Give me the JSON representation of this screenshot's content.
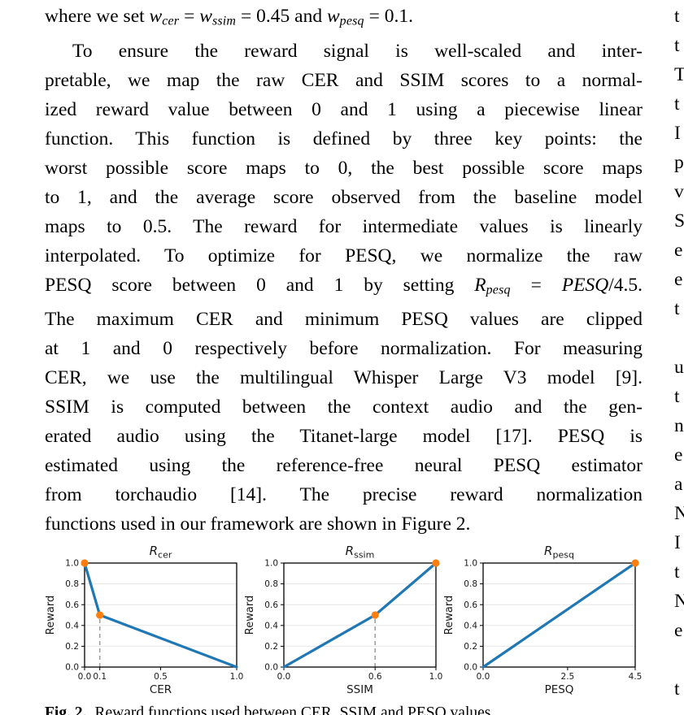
{
  "page": {
    "background": "#ffffff"
  },
  "text": {
    "intro_line": {
      "indent": false,
      "justify": false,
      "segments": [
        {
          "t": "where we set ",
          "s": "n"
        },
        {
          "t": "w",
          "s": "i"
        },
        {
          "t": "cer",
          "s": "sub"
        },
        {
          "t": " = ",
          "s": "n"
        },
        {
          "t": "w",
          "s": "i"
        },
        {
          "t": "ssim",
          "s": "sub"
        },
        {
          "t": " = 0.45 and ",
          "s": "n"
        },
        {
          "t": "w",
          "s": "i"
        },
        {
          "t": "pesq",
          "s": "sub"
        },
        {
          "t": " = 0.1.",
          "s": "n"
        }
      ]
    },
    "paragraph_lines": [
      {
        "indent": true,
        "justify": true,
        "segments": [
          {
            "t": "To ensure the reward signal is well-scaled and inter-",
            "s": "n"
          }
        ]
      },
      {
        "indent": false,
        "justify": true,
        "segments": [
          {
            "t": "pretable, we map the raw CER and SSIM scores to a normal-",
            "s": "n"
          }
        ]
      },
      {
        "indent": false,
        "justify": true,
        "segments": [
          {
            "t": "ized reward value between 0 and 1 using a piecewise linear",
            "s": "n"
          }
        ]
      },
      {
        "indent": false,
        "justify": true,
        "segments": [
          {
            "t": "function. This function is defined by three key points: the",
            "s": "n"
          }
        ]
      },
      {
        "indent": false,
        "justify": true,
        "segments": [
          {
            "t": "worst possible score maps to 0, the best possible score maps",
            "s": "n"
          }
        ]
      },
      {
        "indent": false,
        "justify": true,
        "segments": [
          {
            "t": "to 1, and the average score observed from the baseline model",
            "s": "n"
          }
        ]
      },
      {
        "indent": false,
        "justify": true,
        "segments": [
          {
            "t": "maps to 0.5. The reward for intermediate values is linearly",
            "s": "n"
          }
        ]
      },
      {
        "indent": false,
        "justify": true,
        "segments": [
          {
            "t": "interpolated. To optimize for PESQ, we normalize the raw",
            "s": "n"
          }
        ]
      },
      {
        "indent": false,
        "justify": true,
        "segments": [
          {
            "t": "PESQ score between 0 and 1 by setting ",
            "s": "n"
          },
          {
            "t": "R",
            "s": "i"
          },
          {
            "t": "pesq",
            "s": "sub"
          },
          {
            "t": " = ",
            "s": "n"
          },
          {
            "t": "PESQ",
            "s": "i"
          },
          {
            "t": "/4.5.",
            "s": "n"
          }
        ]
      },
      {
        "indent": false,
        "justify": true,
        "segments": [
          {
            "t": "The maximum CER and minimum PESQ values are clipped",
            "s": "n"
          }
        ]
      },
      {
        "indent": false,
        "justify": true,
        "segments": [
          {
            "t": "at 1 and 0 respectively before normalization. For measuring",
            "s": "n"
          }
        ]
      },
      {
        "indent": false,
        "justify": true,
        "segments": [
          {
            "t": "CER, we use the multilingual Whisper Large V3 model [9].",
            "s": "n"
          }
        ]
      },
      {
        "indent": false,
        "justify": true,
        "segments": [
          {
            "t": "SSIM is computed between the context audio and the gen-",
            "s": "n"
          }
        ]
      },
      {
        "indent": false,
        "justify": true,
        "segments": [
          {
            "t": "erated audio using the Titanet-large model [17]. PESQ is",
            "s": "n"
          }
        ]
      },
      {
        "indent": false,
        "justify": true,
        "segments": [
          {
            "t": "estimated using the reference-free neural PESQ estimator",
            "s": "n"
          }
        ]
      },
      {
        "indent": false,
        "justify": true,
        "segments": [
          {
            "t": "from torchaudio [14]. The precise reward normalization",
            "s": "n"
          }
        ]
      },
      {
        "indent": false,
        "justify": false,
        "segments": [
          {
            "t": "functions used in our framework are shown in Figure 2.",
            "s": "n"
          }
        ]
      }
    ]
  },
  "figure": {
    "caption_label": "Fig. 2.",
    "caption_text": "Reward functions used between CER, SSIM and PESQ values"
  },
  "chart_data": [
    {
      "type": "line",
      "title": "R_cer",
      "title_main": "R",
      "title_sub": "cer",
      "xlabel": "CER",
      "ylabel": "Reward",
      "xlim": [
        0.0,
        1.0
      ],
      "ylim": [
        0.0,
        1.0
      ],
      "grid": true,
      "xticks": [
        {
          "v": 0.0,
          "label": "0.0"
        },
        {
          "v": 0.1,
          "label": "0.1"
        },
        {
          "v": 0.5,
          "label": "0.5"
        },
        {
          "v": 1.0,
          "label": "1.0"
        }
      ],
      "yticks": [
        {
          "v": 0.0,
          "label": "0.0"
        },
        {
          "v": 0.2,
          "label": "0.2"
        },
        {
          "v": 0.4,
          "label": "0.4"
        },
        {
          "v": 0.6,
          "label": "0.6"
        },
        {
          "v": 0.8,
          "label": "0.8"
        },
        {
          "v": 1.0,
          "label": "1.0"
        }
      ],
      "line_points": [
        [
          0.0,
          1.0
        ],
        [
          0.1,
          0.5
        ],
        [
          1.0,
          0.0
        ]
      ],
      "marker_points": [
        [
          0.0,
          1.0
        ],
        [
          0.1,
          0.5
        ]
      ],
      "vline": {
        "x": 0.1,
        "y_top": 0.5
      },
      "line_color": "#1f77b4",
      "marker_color": "#ff7f0e",
      "vline_color": "#a0a0a0"
    },
    {
      "type": "line",
      "title": "R_ssim",
      "title_main": "R",
      "title_sub": "ssim",
      "xlabel": "SSIM",
      "ylabel": "Reward",
      "xlim": [
        0.0,
        1.0
      ],
      "ylim": [
        0.0,
        1.0
      ],
      "grid": true,
      "xticks": [
        {
          "v": 0.0,
          "label": "0.0"
        },
        {
          "v": 0.6,
          "label": "0.6"
        },
        {
          "v": 1.0,
          "label": "1.0"
        }
      ],
      "yticks": [
        {
          "v": 0.0,
          "label": "0.0"
        },
        {
          "v": 0.2,
          "label": "0.2"
        },
        {
          "v": 0.4,
          "label": "0.4"
        },
        {
          "v": 0.6,
          "label": "0.6"
        },
        {
          "v": 0.8,
          "label": "0.8"
        },
        {
          "v": 1.0,
          "label": "1.0"
        }
      ],
      "line_points": [
        [
          0.0,
          0.0
        ],
        [
          0.6,
          0.5
        ],
        [
          1.0,
          1.0
        ]
      ],
      "marker_points": [
        [
          0.6,
          0.5
        ],
        [
          1.0,
          1.0
        ]
      ],
      "vline": {
        "x": 0.6,
        "y_top": 0.5
      },
      "line_color": "#1f77b4",
      "marker_color": "#ff7f0e",
      "vline_color": "#a0a0a0"
    },
    {
      "type": "line",
      "title": "R_pesq",
      "title_main": "R",
      "title_sub": "pesq",
      "xlabel": "PESQ",
      "ylabel": "Reward",
      "xlim": [
        0.0,
        4.5
      ],
      "ylim": [
        0.0,
        1.0
      ],
      "grid": true,
      "xticks": [
        {
          "v": 0.0,
          "label": "0.0"
        },
        {
          "v": 2.5,
          "label": "2.5"
        },
        {
          "v": 4.5,
          "label": "4.5"
        }
      ],
      "yticks": [
        {
          "v": 0.0,
          "label": "0.0"
        },
        {
          "v": 0.2,
          "label": "0.2"
        },
        {
          "v": 0.4,
          "label": "0.4"
        },
        {
          "v": 0.6,
          "label": "0.6"
        },
        {
          "v": 0.8,
          "label": "0.8"
        },
        {
          "v": 1.0,
          "label": "1.0"
        }
      ],
      "line_points": [
        [
          0.0,
          0.0
        ],
        [
          4.5,
          1.0
        ]
      ],
      "marker_points": [
        [
          4.5,
          1.0
        ]
      ],
      "vline": null,
      "line_color": "#1f77b4",
      "marker_color": "#ff7f0e",
      "vline_color": "#a0a0a0"
    }
  ],
  "adjacent_column_fragments": [
    "t",
    "t",
    "T",
    "t",
    "I",
    "p",
    "v",
    "S",
    "e",
    "e",
    "t",
    "",
    "u",
    "t",
    "n",
    "e",
    "a",
    "N",
    "I",
    "t",
    "N",
    "e",
    "",
    "t"
  ]
}
